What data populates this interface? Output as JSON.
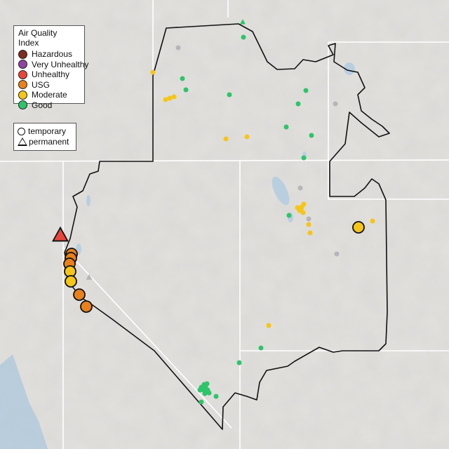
{
  "legend": {
    "title": "Air Quality Index",
    "categories": [
      {
        "label": "Hazardous",
        "color": "#7e2b22"
      },
      {
        "label": "Very Unhealthy",
        "color": "#8f45a0"
      },
      {
        "label": "Unhealthy",
        "color": "#e8463a"
      },
      {
        "label": "USG",
        "color": "#e8801c"
      },
      {
        "label": "Moderate",
        "color": "#f5c518"
      },
      {
        "label": "Good",
        "color": "#2ec46a"
      }
    ]
  },
  "monitor_types": {
    "temporary_label": "temporary",
    "permanent_label": "permanent"
  },
  "colors": {
    "no_data": "#b4b6b8",
    "water": "#b9cfe0",
    "boundary": "#111111",
    "state_line": "#ffffff"
  }
}
